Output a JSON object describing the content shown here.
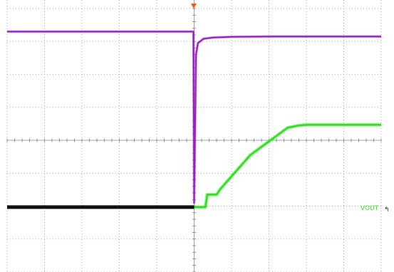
{
  "chart_data": {
    "type": "line",
    "title": "",
    "xlabel": "",
    "ylabel": "",
    "grid": true,
    "grid_divisions": {
      "x": 10,
      "y": 8
    },
    "xlim": [
      -5,
      5
    ],
    "ylim": [
      -4,
      4
    ],
    "trigger_marker": {
      "x": 0,
      "color": "#ff5a00"
    },
    "series": [
      {
        "name": "",
        "color": "#9b1fbf",
        "x": [
          -5,
          -0.02,
          0.0,
          0.05,
          0.1,
          0.25,
          0.5,
          1.0,
          2.0,
          3.0,
          4.0,
          5.0
        ],
        "y": [
          3.3,
          3.3,
          -1.9,
          2.6,
          2.95,
          3.08,
          3.12,
          3.14,
          3.15,
          3.15,
          3.15,
          3.15
        ]
      },
      {
        "name": "VOUT",
        "color": "#33dd22",
        "x": [
          -5.0,
          -4.0,
          -3.0,
          -2.0,
          -1.0,
          0.0,
          0.3,
          0.35,
          0.6,
          0.7,
          1.5,
          2.5,
          2.8,
          3.0,
          3.5,
          4.0,
          5.0
        ],
        "y": [
          -2.03,
          -2.03,
          -2.03,
          -2.03,
          -2.03,
          -2.03,
          -2.03,
          -1.65,
          -1.65,
          -1.48,
          -0.45,
          0.38,
          0.45,
          0.47,
          0.47,
          0.47,
          0.47
        ]
      }
    ],
    "ground_marker": {
      "label": "VOUT",
      "symbol": "↰",
      "y": -2.03
    }
  }
}
